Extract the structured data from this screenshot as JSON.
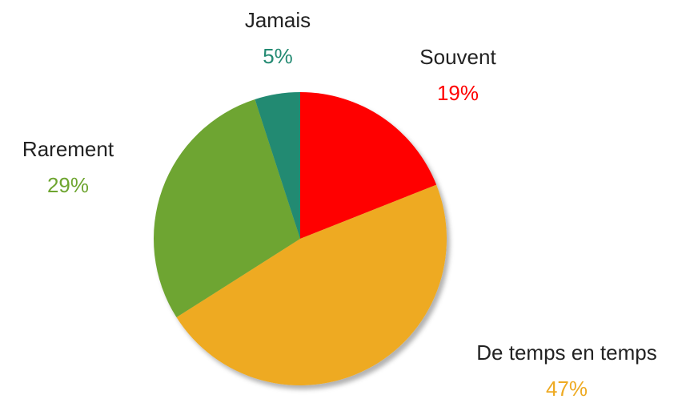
{
  "chart_data": {
    "type": "pie",
    "categories": [
      "Souvent",
      "De temps en temps",
      "Rarement",
      "Jamais"
    ],
    "values": [
      19,
      47,
      29,
      5
    ],
    "value_labels": [
      "19%",
      "47%",
      "29%",
      "5%"
    ],
    "colors": [
      "#ff0000",
      "#eeaa22",
      "#6ea530",
      "#238a72"
    ]
  }
}
